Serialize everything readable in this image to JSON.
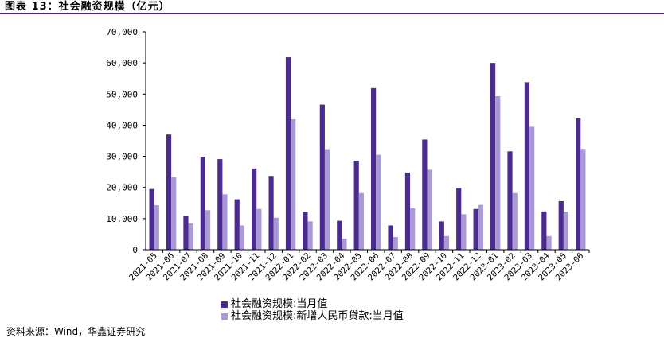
{
  "header": {
    "title": "图表 13：社会融资规模（亿元）"
  },
  "footer": {
    "source": "资料来源：Wind，华鑫证券研究"
  },
  "colors": {
    "series1": "#4b2b8f",
    "series2": "#a99ad6",
    "rule": "#4a2a7a",
    "axis": "#000000"
  },
  "chart_data": {
    "type": "bar",
    "title": "",
    "xlabel": "",
    "ylabel": "",
    "ylim": [
      0,
      70000
    ],
    "yticks": [
      0,
      10000,
      20000,
      30000,
      40000,
      50000,
      60000,
      70000
    ],
    "ytick_labels": [
      "0",
      "10,000",
      "20,000",
      "30,000",
      "40,000",
      "50,000",
      "60,000",
      "70,000"
    ],
    "grid": false,
    "legend_position": "bottom",
    "categories": [
      "2021-05",
      "2021-06",
      "2021-07",
      "2021-08",
      "2021-09",
      "2021-10",
      "2021-11",
      "2021-12",
      "2022-01",
      "2022-02",
      "2022-03",
      "2022-04",
      "2022-05",
      "2022-06",
      "2022-07",
      "2022-08",
      "2022-09",
      "2022-10",
      "2022-11",
      "2022-12",
      "2023-01",
      "2023-02",
      "2023-03",
      "2023-04",
      "2023-05",
      "2023-06"
    ],
    "series": [
      {
        "name": "社会融资规模:当月值",
        "values": [
          19500,
          37000,
          10800,
          29900,
          29100,
          16200,
          26100,
          23700,
          61800,
          12200,
          46600,
          9300,
          28600,
          51900,
          7800,
          24800,
          35400,
          9100,
          19900,
          13100,
          60000,
          31600,
          53800,
          12300,
          15600,
          42200
        ]
      },
      {
        "name": "社会融资规模:新增人民币贷款:当月值",
        "values": [
          14300,
          23300,
          8400,
          12700,
          17800,
          7800,
          13100,
          10300,
          41900,
          9100,
          32300,
          3600,
          18200,
          30500,
          4100,
          13300,
          25700,
          4400,
          11400,
          14400,
          49300,
          18200,
          39500,
          4400,
          12200,
          32400
        ]
      }
    ]
  }
}
